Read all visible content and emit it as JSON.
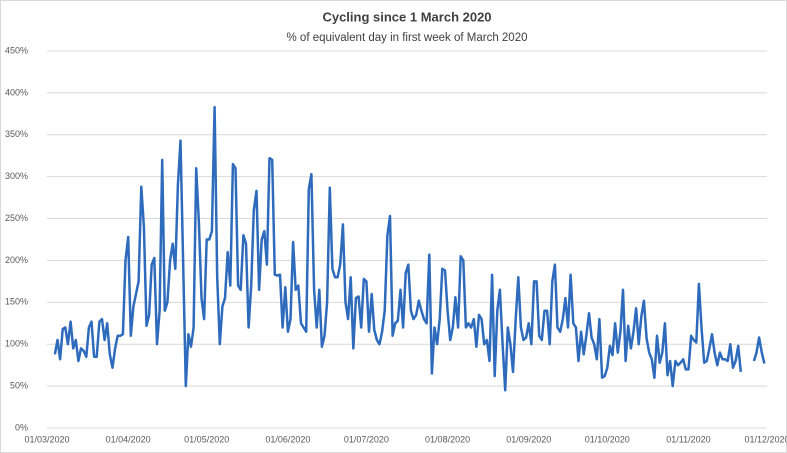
{
  "chart_data": {
    "type": "line",
    "title": "Cycling since 1 March 2020",
    "subtitle": "% of equivalent day in first week of March 2020",
    "x": [
      "04/03/2020",
      "05/03/2020",
      "06/03/2020",
      "07/03/2020",
      "08/03/2020",
      "09/03/2020",
      "10/03/2020",
      "11/03/2020",
      "12/03/2020",
      "13/03/2020",
      "14/03/2020",
      "15/03/2020",
      "16/03/2020",
      "17/03/2020",
      "18/03/2020",
      "19/03/2020",
      "20/03/2020",
      "21/03/2020",
      "22/03/2020",
      "23/03/2020",
      "24/03/2020",
      "25/03/2020",
      "26/03/2020",
      "27/03/2020",
      "28/03/2020",
      "29/03/2020",
      "30/03/2020",
      "31/03/2020",
      "01/04/2020",
      "02/04/2020",
      "03/04/2020",
      "04/04/2020",
      "05/04/2020",
      "06/04/2020",
      "07/04/2020",
      "08/04/2020",
      "09/04/2020",
      "10/04/2020",
      "11/04/2020",
      "12/04/2020",
      "13/04/2020",
      "14/04/2020",
      "15/04/2020",
      "16/04/2020",
      "17/04/2020",
      "18/04/2020",
      "19/04/2020",
      "20/04/2020",
      "21/04/2020",
      "22/04/2020",
      "23/04/2020",
      "24/04/2020",
      "25/04/2020",
      "26/04/2020",
      "27/04/2020",
      "28/04/2020",
      "29/04/2020",
      "30/04/2020",
      "01/05/2020",
      "02/05/2020",
      "03/05/2020",
      "04/05/2020",
      "05/05/2020",
      "06/05/2020",
      "07/05/2020",
      "08/05/2020",
      "09/05/2020",
      "10/05/2020",
      "11/05/2020",
      "12/05/2020",
      "13/05/2020",
      "14/05/2020",
      "15/05/2020",
      "16/05/2020",
      "17/05/2020",
      "18/05/2020",
      "19/05/2020",
      "20/05/2020",
      "21/05/2020",
      "22/05/2020",
      "23/05/2020",
      "24/05/2020",
      "25/05/2020",
      "26/05/2020",
      "27/05/2020",
      "28/05/2020",
      "29/05/2020",
      "30/05/2020",
      "31/05/2020",
      "01/06/2020",
      "02/06/2020",
      "03/06/2020",
      "04/06/2020",
      "05/06/2020",
      "06/06/2020",
      "07/06/2020",
      "08/06/2020",
      "09/06/2020",
      "10/06/2020",
      "11/06/2020",
      "12/06/2020",
      "13/06/2020",
      "14/06/2020",
      "15/06/2020",
      "16/06/2020",
      "17/06/2020",
      "18/06/2020",
      "19/06/2020",
      "20/06/2020",
      "21/06/2020",
      "22/06/2020",
      "23/06/2020",
      "24/06/2020",
      "25/06/2020",
      "26/06/2020",
      "27/06/2020",
      "28/06/2020",
      "29/06/2020",
      "30/06/2020",
      "01/07/2020",
      "02/07/2020",
      "03/07/2020",
      "04/07/2020",
      "05/07/2020",
      "06/07/2020",
      "07/07/2020",
      "08/07/2020",
      "09/07/2020",
      "10/07/2020",
      "11/07/2020",
      "12/07/2020",
      "13/07/2020",
      "14/07/2020",
      "15/07/2020",
      "16/07/2020",
      "17/07/2020",
      "18/07/2020",
      "19/07/2020",
      "20/07/2020",
      "21/07/2020",
      "22/07/2020",
      "23/07/2020",
      "24/07/2020",
      "25/07/2020",
      "26/07/2020",
      "27/07/2020",
      "28/07/2020",
      "29/07/2020",
      "30/07/2020",
      "31/07/2020",
      "01/08/2020",
      "02/08/2020",
      "03/08/2020",
      "04/08/2020",
      "05/08/2020",
      "06/08/2020",
      "07/08/2020",
      "08/08/2020",
      "09/08/2020",
      "10/08/2020",
      "11/08/2020",
      "12/08/2020",
      "13/08/2020",
      "14/08/2020",
      "15/08/2020",
      "16/08/2020",
      "17/08/2020",
      "18/08/2020",
      "19/08/2020",
      "20/08/2020",
      "21/08/2020",
      "22/08/2020",
      "23/08/2020",
      "24/08/2020",
      "25/08/2020",
      "26/08/2020",
      "27/08/2020",
      "28/08/2020",
      "29/08/2020",
      "30/08/2020",
      "31/08/2020",
      "01/09/2020",
      "02/09/2020",
      "03/09/2020",
      "04/09/2020",
      "05/09/2020",
      "06/09/2020",
      "07/09/2020",
      "08/09/2020",
      "09/09/2020",
      "10/09/2020",
      "11/09/2020",
      "12/09/2020",
      "13/09/2020",
      "14/09/2020",
      "15/09/2020",
      "16/09/2020",
      "17/09/2020",
      "18/09/2020",
      "19/09/2020",
      "20/09/2020",
      "21/09/2020",
      "22/09/2020",
      "23/09/2020",
      "24/09/2020",
      "25/09/2020",
      "26/09/2020",
      "27/09/2020",
      "28/09/2020",
      "29/09/2020",
      "30/09/2020",
      "01/10/2020",
      "02/10/2020",
      "03/10/2020",
      "04/10/2020",
      "05/10/2020",
      "06/10/2020",
      "07/10/2020",
      "08/10/2020",
      "09/10/2020",
      "10/10/2020",
      "11/10/2020",
      "12/10/2020",
      "13/10/2020",
      "14/10/2020",
      "15/10/2020",
      "16/10/2020",
      "17/10/2020",
      "18/10/2020",
      "19/10/2020",
      "20/10/2020",
      "21/10/2020",
      "22/10/2020",
      "23/10/2020",
      "24/10/2020",
      "25/10/2020",
      "26/10/2020",
      "27/10/2020",
      "28/10/2020",
      "29/10/2020",
      "30/10/2020",
      "31/10/2020",
      "01/11/2020",
      "02/11/2020",
      "03/11/2020",
      "04/11/2020",
      "05/11/2020",
      "06/11/2020",
      "07/11/2020",
      "08/11/2020",
      "09/11/2020",
      "10/11/2020",
      "11/11/2020",
      "12/11/2020",
      "13/11/2020",
      "14/11/2020",
      "15/11/2020",
      "16/11/2020",
      "17/11/2020",
      "18/11/2020",
      "19/11/2020",
      "20/11/2020",
      "21/11/2020",
      "22/11/2020",
      "23/11/2020",
      "24/11/2020",
      "25/11/2020",
      "26/11/2020",
      "27/11/2020",
      "28/11/2020",
      "29/11/2020",
      "30/11/2020"
    ],
    "series": [
      {
        "color": "#2e6bbd",
        "values": [
          88,
          105,
          82,
          118,
          120,
          100,
          127,
          95,
          105,
          80,
          95,
          92,
          85,
          120,
          127,
          85,
          85,
          127,
          130,
          105,
          125,
          88,
          72,
          95,
          110,
          110,
          112,
          200,
          228,
          110,
          145,
          160,
          175,
          288,
          240,
          122,
          135,
          195,
          203,
          100,
          140,
          320,
          140,
          150,
          200,
          220,
          190,
          290,
          343,
          200,
          50,
          112,
          97,
          120,
          310,
          245,
          155,
          130,
          225,
          225,
          235,
          383,
          180,
          100,
          145,
          155,
          210,
          170,
          315,
          310,
          170,
          165,
          230,
          220,
          120,
          170,
          260,
          283,
          165,
          225,
          235,
          195,
          322,
          320,
          183,
          182,
          183,
          120,
          168,
          115,
          130,
          222,
          165,
          170,
          125,
          120,
          115,
          285,
          303,
          165,
          120,
          165,
          97,
          110,
          150,
          287,
          190,
          180,
          180,
          195,
          243,
          150,
          130,
          180,
          95,
          155,
          157,
          120,
          178,
          175,
          115,
          160,
          117,
          105,
          100,
          115,
          140,
          230,
          253,
          110,
          125,
          128,
          165,
          120,
          185,
          195,
          140,
          130,
          135,
          152,
          140,
          130,
          125,
          207,
          65,
          120,
          100,
          130,
          190,
          188,
          140,
          105,
          120,
          156,
          120,
          205,
          200,
          120,
          125,
          120,
          130,
          97,
          135,
          130,
          100,
          105,
          80,
          183,
          62,
          140,
          165,
          100,
          45,
          120,
          100,
          67,
          130,
          180,
          120,
          105,
          108,
          125,
          100,
          175,
          175,
          110,
          105,
          140,
          140,
          100,
          175,
          195,
          120,
          115,
          130,
          155,
          120,
          183,
          125,
          120,
          80,
          115,
          88,
          110,
          137,
          108,
          100,
          82,
          130,
          60,
          62,
          72,
          98,
          87,
          125,
          90,
          115,
          165,
          80,
          122,
          95,
          115,
          143,
          100,
          133,
          152,
          107,
          90,
          82,
          60,
          110,
          78,
          90,
          125,
          63,
          80,
          50,
          80,
          75,
          78,
          82,
          70,
          70,
          110,
          105,
          102,
          172,
          120,
          78,
          80,
          95,
          112,
          90,
          75,
          90,
          82,
          82,
          80,
          100,
          72,
          80,
          98,
          67,
          null,
          null,
          null,
          null,
          80,
          90,
          108,
          90,
          77
        ]
      }
    ],
    "xlim": [
      "01/03/2020",
      "01/12/2020"
    ],
    "xticks": [
      "01/03/2020",
      "01/04/2020",
      "01/05/2020",
      "01/06/2020",
      "01/07/2020",
      "01/08/2020",
      "01/09/2020",
      "01/10/2020",
      "01/11/2020",
      "01/12/2020"
    ],
    "ylim": [
      0,
      450
    ],
    "yticks": [
      {
        "value": 0,
        "label": "0%"
      },
      {
        "value": 50,
        "label": "50%"
      },
      {
        "value": 100,
        "label": "100%"
      },
      {
        "value": 150,
        "label": "150%"
      },
      {
        "value": 200,
        "label": "200%"
      },
      {
        "value": 250,
        "label": "250%"
      },
      {
        "value": 300,
        "label": "300%"
      },
      {
        "value": 350,
        "label": "350%"
      },
      {
        "value": 400,
        "label": "400%"
      },
      {
        "value": 450,
        "label": "450%"
      }
    ],
    "grid": true
  }
}
